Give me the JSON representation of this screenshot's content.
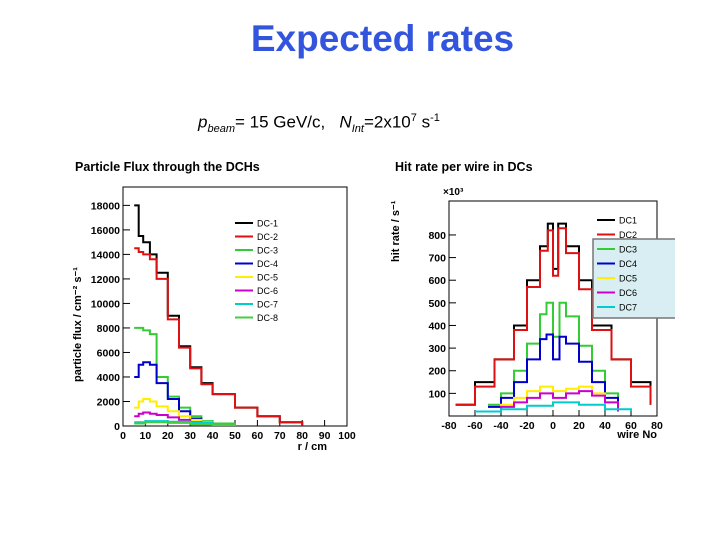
{
  "slide": {
    "title": "Expected rates",
    "beam": {
      "p": "p",
      "p_sub": "beam",
      "p_val": "= 15 GeV/c,",
      "n": "N",
      "n_sub": "Int",
      "n_val": "=2x10",
      "n_sup": "7",
      "unit": " s",
      "unit_sup": "-1"
    }
  },
  "chart_data": [
    {
      "type": "line",
      "title": "Particle Flux through the DCHs",
      "xlabel": "r / cm",
      "ylabel": "particle flux / cm⁻² s⁻¹",
      "xlim": [
        0,
        100
      ],
      "ylim": [
        0,
        19500
      ],
      "xticks": [
        0,
        10,
        20,
        30,
        40,
        50,
        60,
        70,
        80,
        90,
        100
      ],
      "yticks": [
        0,
        2000,
        4000,
        6000,
        8000,
        10000,
        12000,
        14000,
        16000,
        18000
      ],
      "legend": {
        "position": "top-right",
        "entries": [
          "DC-1",
          "DC-2",
          "DC-3",
          "DC-4",
          "DC-5",
          "DC-6",
          "DC-7",
          "DC-8"
        ]
      },
      "series": [
        {
          "name": "DC-1",
          "color": "#000000",
          "x": [
            5,
            7,
            9,
            12,
            15,
            20,
            25,
            30,
            35,
            40,
            50,
            60,
            70,
            80
          ],
          "y": [
            18000,
            15500,
            15000,
            14000,
            12500,
            9000,
            6500,
            4800,
            3500,
            2600,
            1500,
            800,
            300,
            0
          ]
        },
        {
          "name": "DC-2",
          "color": "#dd1111",
          "x": [
            5,
            7,
            9,
            12,
            15,
            20,
            25,
            30,
            35,
            40,
            50,
            60,
            70,
            80
          ],
          "y": [
            14500,
            14200,
            14000,
            13600,
            12000,
            8700,
            6400,
            4700,
            3400,
            2600,
            1500,
            800,
            300,
            0
          ]
        },
        {
          "name": "DC-3",
          "color": "#33cc33",
          "x": [
            5,
            7,
            9,
            12,
            15,
            20,
            25,
            30,
            35,
            40,
            50
          ],
          "y": [
            8000,
            8000,
            7800,
            7500,
            4000,
            2400,
            1500,
            800,
            400,
            200,
            0
          ]
        },
        {
          "name": "DC-4",
          "color": "#0000cc",
          "x": [
            5,
            7,
            9,
            12,
            15,
            20,
            25,
            30,
            35,
            40,
            50
          ],
          "y": [
            4000,
            5000,
            5200,
            5000,
            3500,
            2200,
            1200,
            600,
            300,
            100,
            0
          ]
        },
        {
          "name": "DC-5",
          "color": "#ffee00",
          "x": [
            5,
            7,
            9,
            12,
            15,
            20,
            25,
            30,
            35,
            40,
            50
          ],
          "y": [
            1500,
            2000,
            2200,
            2000,
            1600,
            1200,
            800,
            500,
            300,
            100,
            0
          ]
        },
        {
          "name": "DC-6",
          "color": "#cc00cc",
          "x": [
            5,
            7,
            9,
            12,
            15,
            20,
            25,
            30,
            35,
            40,
            50
          ],
          "y": [
            800,
            1000,
            1100,
            1000,
            900,
            700,
            500,
            300,
            200,
            80,
            0
          ]
        },
        {
          "name": "DC-7",
          "color": "#00cccc",
          "x": [
            5,
            10,
            20,
            30,
            40,
            50
          ],
          "y": [
            300,
            400,
            350,
            250,
            150,
            0
          ]
        },
        {
          "name": "DC-8",
          "color": "#44cc44",
          "x": [
            5,
            10,
            20,
            30,
            40,
            50
          ],
          "y": [
            200,
            300,
            250,
            150,
            80,
            0
          ]
        }
      ]
    },
    {
      "type": "line",
      "title": "Hit rate per wire in DCs",
      "xlabel": "wire No",
      "ylabel": "hit rate / s⁻¹",
      "yexp": "×10³",
      "xlim": [
        -80,
        80
      ],
      "ylim": [
        0,
        950
      ],
      "xticks": [
        -80,
        -60,
        -40,
        -20,
        0,
        20,
        40,
        60,
        80
      ],
      "yticks": [
        100,
        200,
        300,
        400,
        500,
        600,
        700,
        800
      ],
      "legend": {
        "position": "top-right",
        "entries": [
          "DC1",
          "DC2",
          "DC3",
          "DC4",
          "DC5",
          "DC6",
          "DC7"
        ]
      },
      "series": [
        {
          "name": "DC1",
          "color": "#000000",
          "x": [
            -75,
            -60,
            -45,
            -30,
            -20,
            -10,
            -4,
            0,
            4,
            10,
            20,
            30,
            45,
            60,
            75
          ],
          "y": [
            50,
            150,
            250,
            400,
            600,
            750,
            850,
            650,
            850,
            750,
            600,
            400,
            250,
            150,
            50
          ]
        },
        {
          "name": "DC2",
          "color": "#dd1111",
          "x": [
            -75,
            -60,
            -45,
            -30,
            -20,
            -10,
            -4,
            0,
            4,
            10,
            20,
            30,
            45,
            60,
            75
          ],
          "y": [
            50,
            130,
            250,
            380,
            570,
            730,
            820,
            620,
            830,
            720,
            560,
            380,
            250,
            130,
            50
          ]
        },
        {
          "name": "DC3",
          "color": "#33cc33",
          "x": [
            -50,
            -40,
            -30,
            -20,
            -10,
            -5,
            0,
            5,
            10,
            20,
            30,
            40,
            50
          ],
          "y": [
            50,
            100,
            200,
            320,
            450,
            500,
            350,
            500,
            440,
            310,
            200,
            100,
            50
          ]
        },
        {
          "name": "DC4",
          "color": "#0000cc",
          "x": [
            -50,
            -40,
            -30,
            -20,
            -10,
            -5,
            0,
            5,
            10,
            20,
            30,
            40,
            50
          ],
          "y": [
            40,
            80,
            150,
            250,
            340,
            360,
            250,
            350,
            320,
            240,
            150,
            80,
            40
          ]
        },
        {
          "name": "DC5",
          "color": "#ffee00",
          "x": [
            -50,
            -40,
            -30,
            -20,
            -10,
            0,
            10,
            20,
            30,
            40,
            50
          ],
          "y": [
            20,
            50,
            80,
            110,
            130,
            110,
            120,
            130,
            100,
            60,
            20
          ]
        },
        {
          "name": "DC6",
          "color": "#cc00cc",
          "x": [
            -50,
            -40,
            -30,
            -20,
            -10,
            0,
            10,
            20,
            30,
            40,
            50
          ],
          "y": [
            20,
            40,
            60,
            80,
            100,
            80,
            100,
            110,
            90,
            60,
            20
          ]
        },
        {
          "name": "DC7",
          "color": "#00cccc",
          "x": [
            -60,
            -40,
            -20,
            0,
            20,
            40,
            60
          ],
          "y": [
            20,
            30,
            45,
            60,
            50,
            30,
            20
          ]
        }
      ]
    }
  ]
}
